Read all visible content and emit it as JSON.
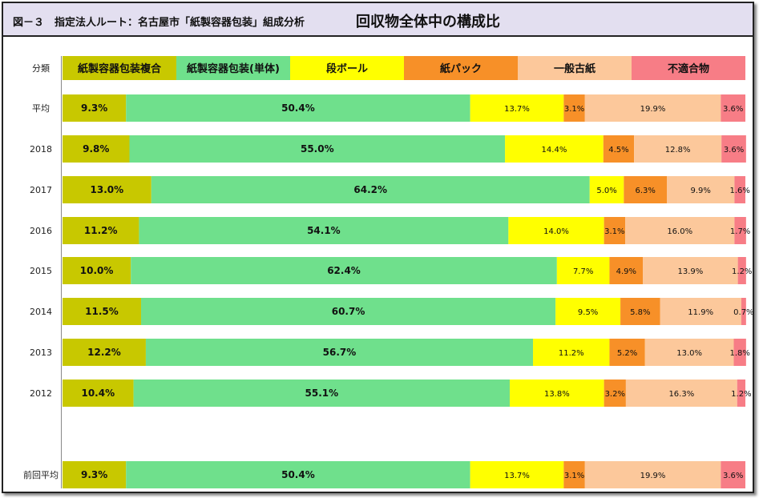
{
  "header": {
    "figure_title": "図－３　指定法人ルート：名古屋市「紙製容器包装」組成分析",
    "main_title": "回収物全体中の構成比"
  },
  "chart_data": {
    "type": "bar",
    "orientation": "horizontal",
    "stacked": "100%",
    "category_header": "分類",
    "categories": [
      "平均",
      "2018",
      "2017",
      "2016",
      "2015",
      "2014",
      "2013",
      "2012",
      "前回平均"
    ],
    "series": [
      {
        "name": "紙製容器包装複合",
        "color": "#c8c800",
        "values": [
          9.3,
          9.8,
          13.0,
          11.2,
          10.0,
          11.5,
          12.2,
          10.4,
          9.3
        ]
      },
      {
        "name": "紙製容器包装(単体)",
        "color": "#6fe08c",
        "values": [
          50.4,
          55.0,
          64.2,
          54.1,
          62.4,
          60.7,
          56.7,
          55.1,
          50.4
        ]
      },
      {
        "name": "段ボール",
        "color": "#ffff00",
        "values": [
          13.7,
          14.4,
          5.0,
          14.0,
          7.7,
          9.5,
          11.2,
          13.8,
          13.7
        ]
      },
      {
        "name": "紙パック",
        "color": "#f79028",
        "values": [
          3.1,
          4.5,
          6.3,
          3.1,
          4.9,
          5.8,
          5.2,
          3.2,
          3.1
        ]
      },
      {
        "name": "一般古紙",
        "color": "#fcc89b",
        "values": [
          19.9,
          12.8,
          9.9,
          16.0,
          13.9,
          11.9,
          13.0,
          16.3,
          19.9
        ]
      },
      {
        "name": "不適合物",
        "color": "#f77d86",
        "values": [
          3.6,
          3.6,
          1.6,
          1.7,
          1.2,
          0.7,
          1.8,
          1.2,
          3.6
        ]
      }
    ],
    "label_styles": [
      "bold",
      "bold",
      "normal",
      "normal",
      "normal",
      "normal"
    ],
    "xlim": [
      0,
      100
    ],
    "value_suffix": "%"
  }
}
